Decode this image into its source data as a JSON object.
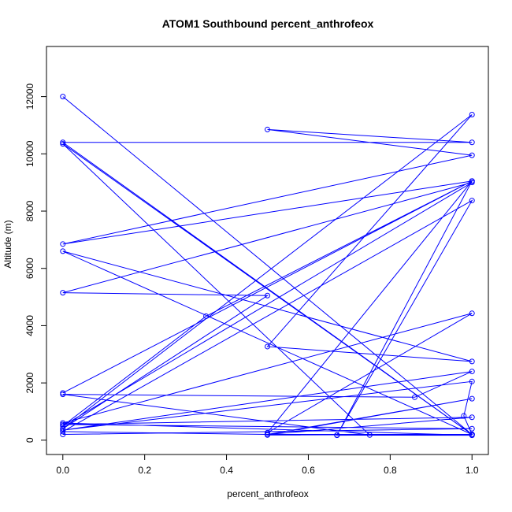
{
  "chart_data": {
    "type": "line",
    "title": "ATOM1 Southbound percent_anthrofeox",
    "xlabel": "percent_anthrofeox",
    "ylabel": "Altitude (m)",
    "xlim": [
      -0.04,
      1.04
    ],
    "ylim": [
      -500,
      13750
    ],
    "x_ticks": [
      0,
      0.2,
      0.4,
      0.6,
      0.8,
      1
    ],
    "x_tick_labels": [
      "0.0",
      "0.2",
      "0.4",
      "0.6",
      "0.8",
      "1.0"
    ],
    "y_ticks": [
      0,
      2000,
      4000,
      6000,
      8000,
      10000,
      12000
    ],
    "y_tick_labels": [
      "0",
      "2000",
      "4000",
      "6000",
      "8000",
      "10000",
      "12000"
    ],
    "grid": false,
    "color": "#0000ff",
    "series": [
      {
        "x": [
          0,
          1,
          0,
          1,
          0.5,
          1,
          0,
          1,
          0.35,
          0,
          1,
          0,
          0.5,
          0,
          1,
          0.5,
          1,
          0,
          1,
          0.67,
          1,
          0,
          1,
          0.5,
          1,
          0,
          1,
          0.67,
          1,
          0,
          0.5,
          1,
          0,
          0.75,
          0,
          0.86,
          1,
          0,
          1,
          0.98,
          1,
          0.5,
          1,
          0.5,
          1,
          0,
          1,
          0
        ],
        "y": [
          12000,
          200,
          10400,
          10400,
          10850,
          9950,
          6850,
          9050,
          4330,
          500,
          9000,
          5150,
          5050,
          400,
          11370,
          3270,
          2750,
          6600,
          200,
          170,
          9050,
          1650,
          9050,
          260,
          4430,
          600,
          170,
          180,
          8370,
          300,
          200,
          200,
          10350,
          180,
          1600,
          1500,
          2400,
          350,
          2050,
          850,
          200,
          180,
          1450,
          200,
          800,
          550,
          400,
          200
        ]
      }
    ]
  }
}
